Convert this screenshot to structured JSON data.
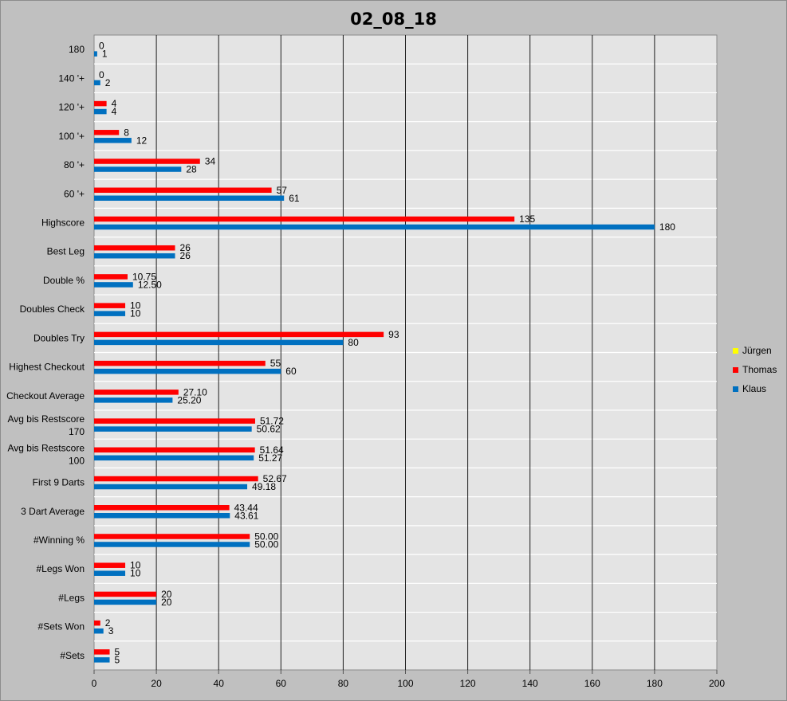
{
  "chart_data": {
    "type": "bar",
    "orientation": "horizontal",
    "title": "02_08_18",
    "xlabel": "",
    "ylabel": "",
    "xlim": [
      0,
      200
    ],
    "xticks": [
      "0",
      "20",
      "40",
      "60",
      "80",
      "100",
      "120",
      "140",
      "160",
      "180",
      "200"
    ],
    "grid": true,
    "legend_position": "right",
    "categories": [
      "180",
      "140 '+",
      "120 '+",
      "100 '+",
      "80 '+",
      "60 '+",
      "Highscore",
      "Best Leg",
      "Double %",
      "Doubles Check",
      "Doubles Try",
      "Highest Checkout",
      "Checkout Average",
      "Avg bis Restscore 170",
      "Avg bis Restscore 100",
      "First 9 Darts",
      "3 Dart Average",
      "#Winning %",
      "#Legs Won",
      "#Legs",
      "#Sets Won",
      "#Sets"
    ],
    "series": [
      {
        "name": "Jürgen",
        "color": "#ffff00",
        "values": [
          null,
          null,
          null,
          null,
          null,
          null,
          null,
          null,
          null,
          null,
          null,
          null,
          null,
          null,
          null,
          null,
          null,
          null,
          null,
          null,
          null,
          null
        ],
        "labels": [
          "",
          "",
          "",
          "",
          "",
          "",
          "",
          "",
          "",
          "",
          "",
          "",
          "",
          "",
          "",
          "",
          "",
          "",
          "",
          "",
          "",
          ""
        ]
      },
      {
        "name": "Thomas",
        "color": "#ff0000",
        "values": [
          0,
          0,
          4,
          8,
          34,
          57,
          135,
          26,
          10.75,
          10,
          93,
          55,
          27.1,
          51.72,
          51.64,
          52.67,
          43.44,
          50,
          10,
          20,
          2,
          5
        ],
        "labels": [
          "0",
          "0",
          "4",
          "8",
          "34",
          "57",
          "135",
          "26",
          "10.75",
          "10",
          "93",
          "55",
          "27.10",
          "51.72",
          "51.64",
          "52.67",
          "43.44",
          "50.00",
          "10",
          "20",
          "2",
          "5"
        ]
      },
      {
        "name": "Klaus",
        "color": "#0070c0",
        "values": [
          1,
          2,
          4,
          12,
          28,
          61,
          180,
          26,
          12.5,
          10,
          80,
          60,
          25.2,
          50.62,
          51.27,
          49.18,
          43.61,
          50,
          10,
          20,
          3,
          5
        ],
        "labels": [
          "1",
          "2",
          "4",
          "12",
          "28",
          "61",
          "180",
          "26",
          "12.50",
          "10",
          "80",
          "60",
          "25.20",
          "50.62",
          "51.27",
          "49.18",
          "43.61",
          "50.00",
          "10",
          "20",
          "3",
          "5"
        ]
      }
    ]
  }
}
